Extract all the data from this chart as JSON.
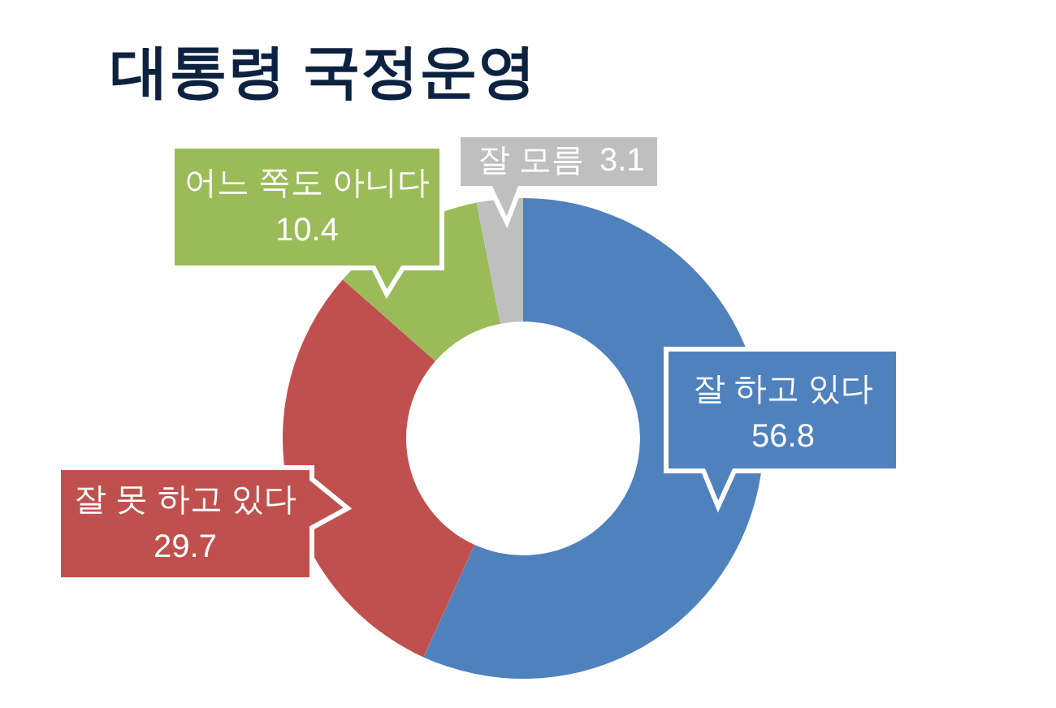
{
  "chart_data": {
    "type": "donut",
    "title": "대통령 국정운영",
    "categories": [
      "잘 하고 있다",
      "잘 못 하고 있다",
      "어느 쪽도 아니다",
      "잘 모름"
    ],
    "values": [
      56.8,
      29.7,
      10.4,
      3.1
    ],
    "colors": [
      "#4f81bd",
      "#c0504d",
      "#9bbb59",
      "#bfbfbf"
    ],
    "data_labels": true
  }
}
